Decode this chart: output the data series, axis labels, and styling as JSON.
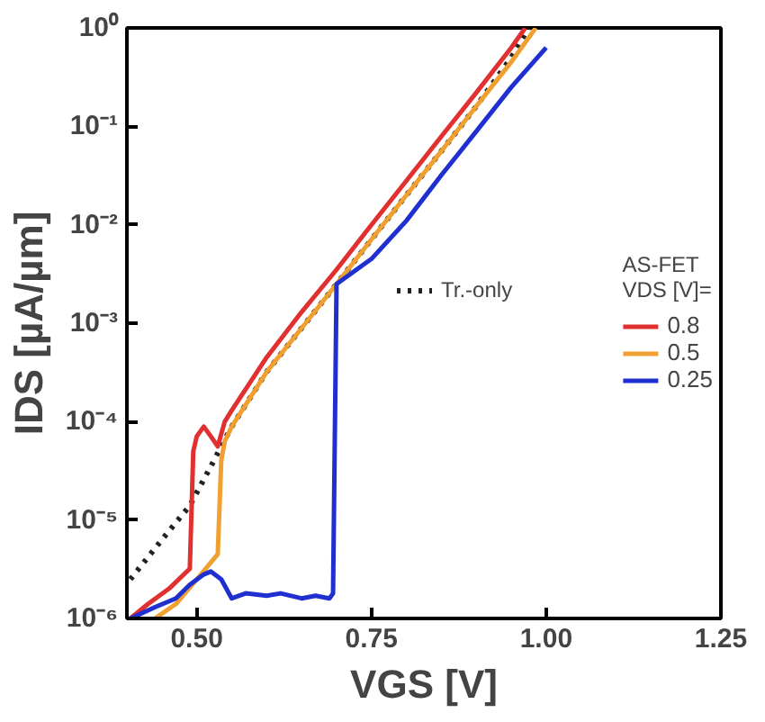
{
  "chart_data": {
    "type": "line",
    "xlabel": "VGS [V]",
    "ylabel": "IDS [µA/µm]",
    "log": "y",
    "xlim": [
      0.4,
      1.25
    ],
    "xticks": [
      {
        "value": 0.5,
        "label": "0.50"
      },
      {
        "value": 0.75,
        "label": "0.75"
      },
      {
        "value": 1.0,
        "label": "1.00"
      },
      1.25
    ],
    "ylim": [
      1e-06,
      1
    ],
    "yticks": [
      {
        "value": 1e-06,
        "label": "10⁻⁶"
      },
      {
        "value": 1e-05,
        "label": "10⁻⁵"
      },
      {
        "value": 0.0001,
        "label": "10⁻⁴"
      },
      {
        "value": 0.001,
        "label": "10⁻³"
      },
      {
        "value": 0.01,
        "label": "10⁻²"
      },
      {
        "value": 0.1,
        "label": "10⁻¹"
      },
      {
        "value": 1,
        "label": "10⁰"
      }
    ],
    "grid": false,
    "legend": "right",
    "legend_title": "AS-FET\nVDS [V]=",
    "marker": "none",
    "series": [
      {
        "name": "Tr.-only",
        "color": "#222222",
        "line_style": "dotted",
        "x": [
          0.405,
          0.45,
          0.49,
          0.52,
          0.55,
          0.6,
          0.65,
          0.7,
          0.75,
          0.8,
          0.85,
          0.9,
          0.95,
          0.975
        ],
        "values": [
          2.5e-06,
          6.3e-06,
          1.4e-05,
          3.5e-05,
          8.9e-05,
          0.00032,
          0.00089,
          0.0025,
          0.0071,
          0.02,
          0.056,
          0.16,
          0.5,
          1
        ]
      },
      {
        "name": "0.8",
        "color": "#e03030",
        "line_style": "solid",
        "x": [
          0.405,
          0.43,
          0.46,
          0.49,
          0.495,
          0.5,
          0.51,
          0.52,
          0.53,
          0.54,
          0.55,
          0.6,
          0.65,
          0.7,
          0.75,
          0.8,
          0.85,
          0.9,
          0.95,
          0.97
        ],
        "values": [
          1e-06,
          1.4e-06,
          2e-06,
          3.2e-06,
          5e-05,
          7.1e-05,
          8.9e-05,
          7.1e-05,
          5.6e-05,
          0.0001,
          0.00013,
          0.00045,
          0.0013,
          0.0035,
          0.01,
          0.028,
          0.079,
          0.22,
          0.63,
          1
        ]
      },
      {
        "name": "0.5",
        "color": "#f0a030",
        "line_style": "solid",
        "x": [
          0.44,
          0.47,
          0.5,
          0.53,
          0.535,
          0.54,
          0.55,
          0.6,
          0.65,
          0.7,
          0.75,
          0.8,
          0.85,
          0.9,
          0.95,
          0.985
        ],
        "values": [
          1e-06,
          1.4e-06,
          2.5e-06,
          4.5e-06,
          4e-05,
          6.3e-05,
          8.9e-05,
          0.00032,
          0.00089,
          0.0025,
          0.0071,
          0.02,
          0.056,
          0.16,
          0.45,
          1
        ]
      },
      {
        "name": "0.25",
        "color": "#2030d0",
        "line_style": "solid",
        "x": [
          0.405,
          0.44,
          0.47,
          0.49,
          0.51,
          0.52,
          0.535,
          0.55,
          0.57,
          0.6,
          0.62,
          0.65,
          0.67,
          0.69,
          0.695,
          0.7,
          0.75,
          0.8,
          0.85,
          0.9,
          0.95,
          1.0
        ],
        "values": [
          1e-06,
          1.3e-06,
          1.6e-06,
          2.2e-06,
          2.8e-06,
          3e-06,
          2.5e-06,
          1.6e-06,
          1.8e-06,
          1.7e-06,
          1.8e-06,
          1.6e-06,
          1.7e-06,
          1.6e-06,
          1.8e-06,
          0.0025,
          0.0045,
          0.011,
          0.032,
          0.089,
          0.25,
          0.63
        ]
      }
    ]
  }
}
